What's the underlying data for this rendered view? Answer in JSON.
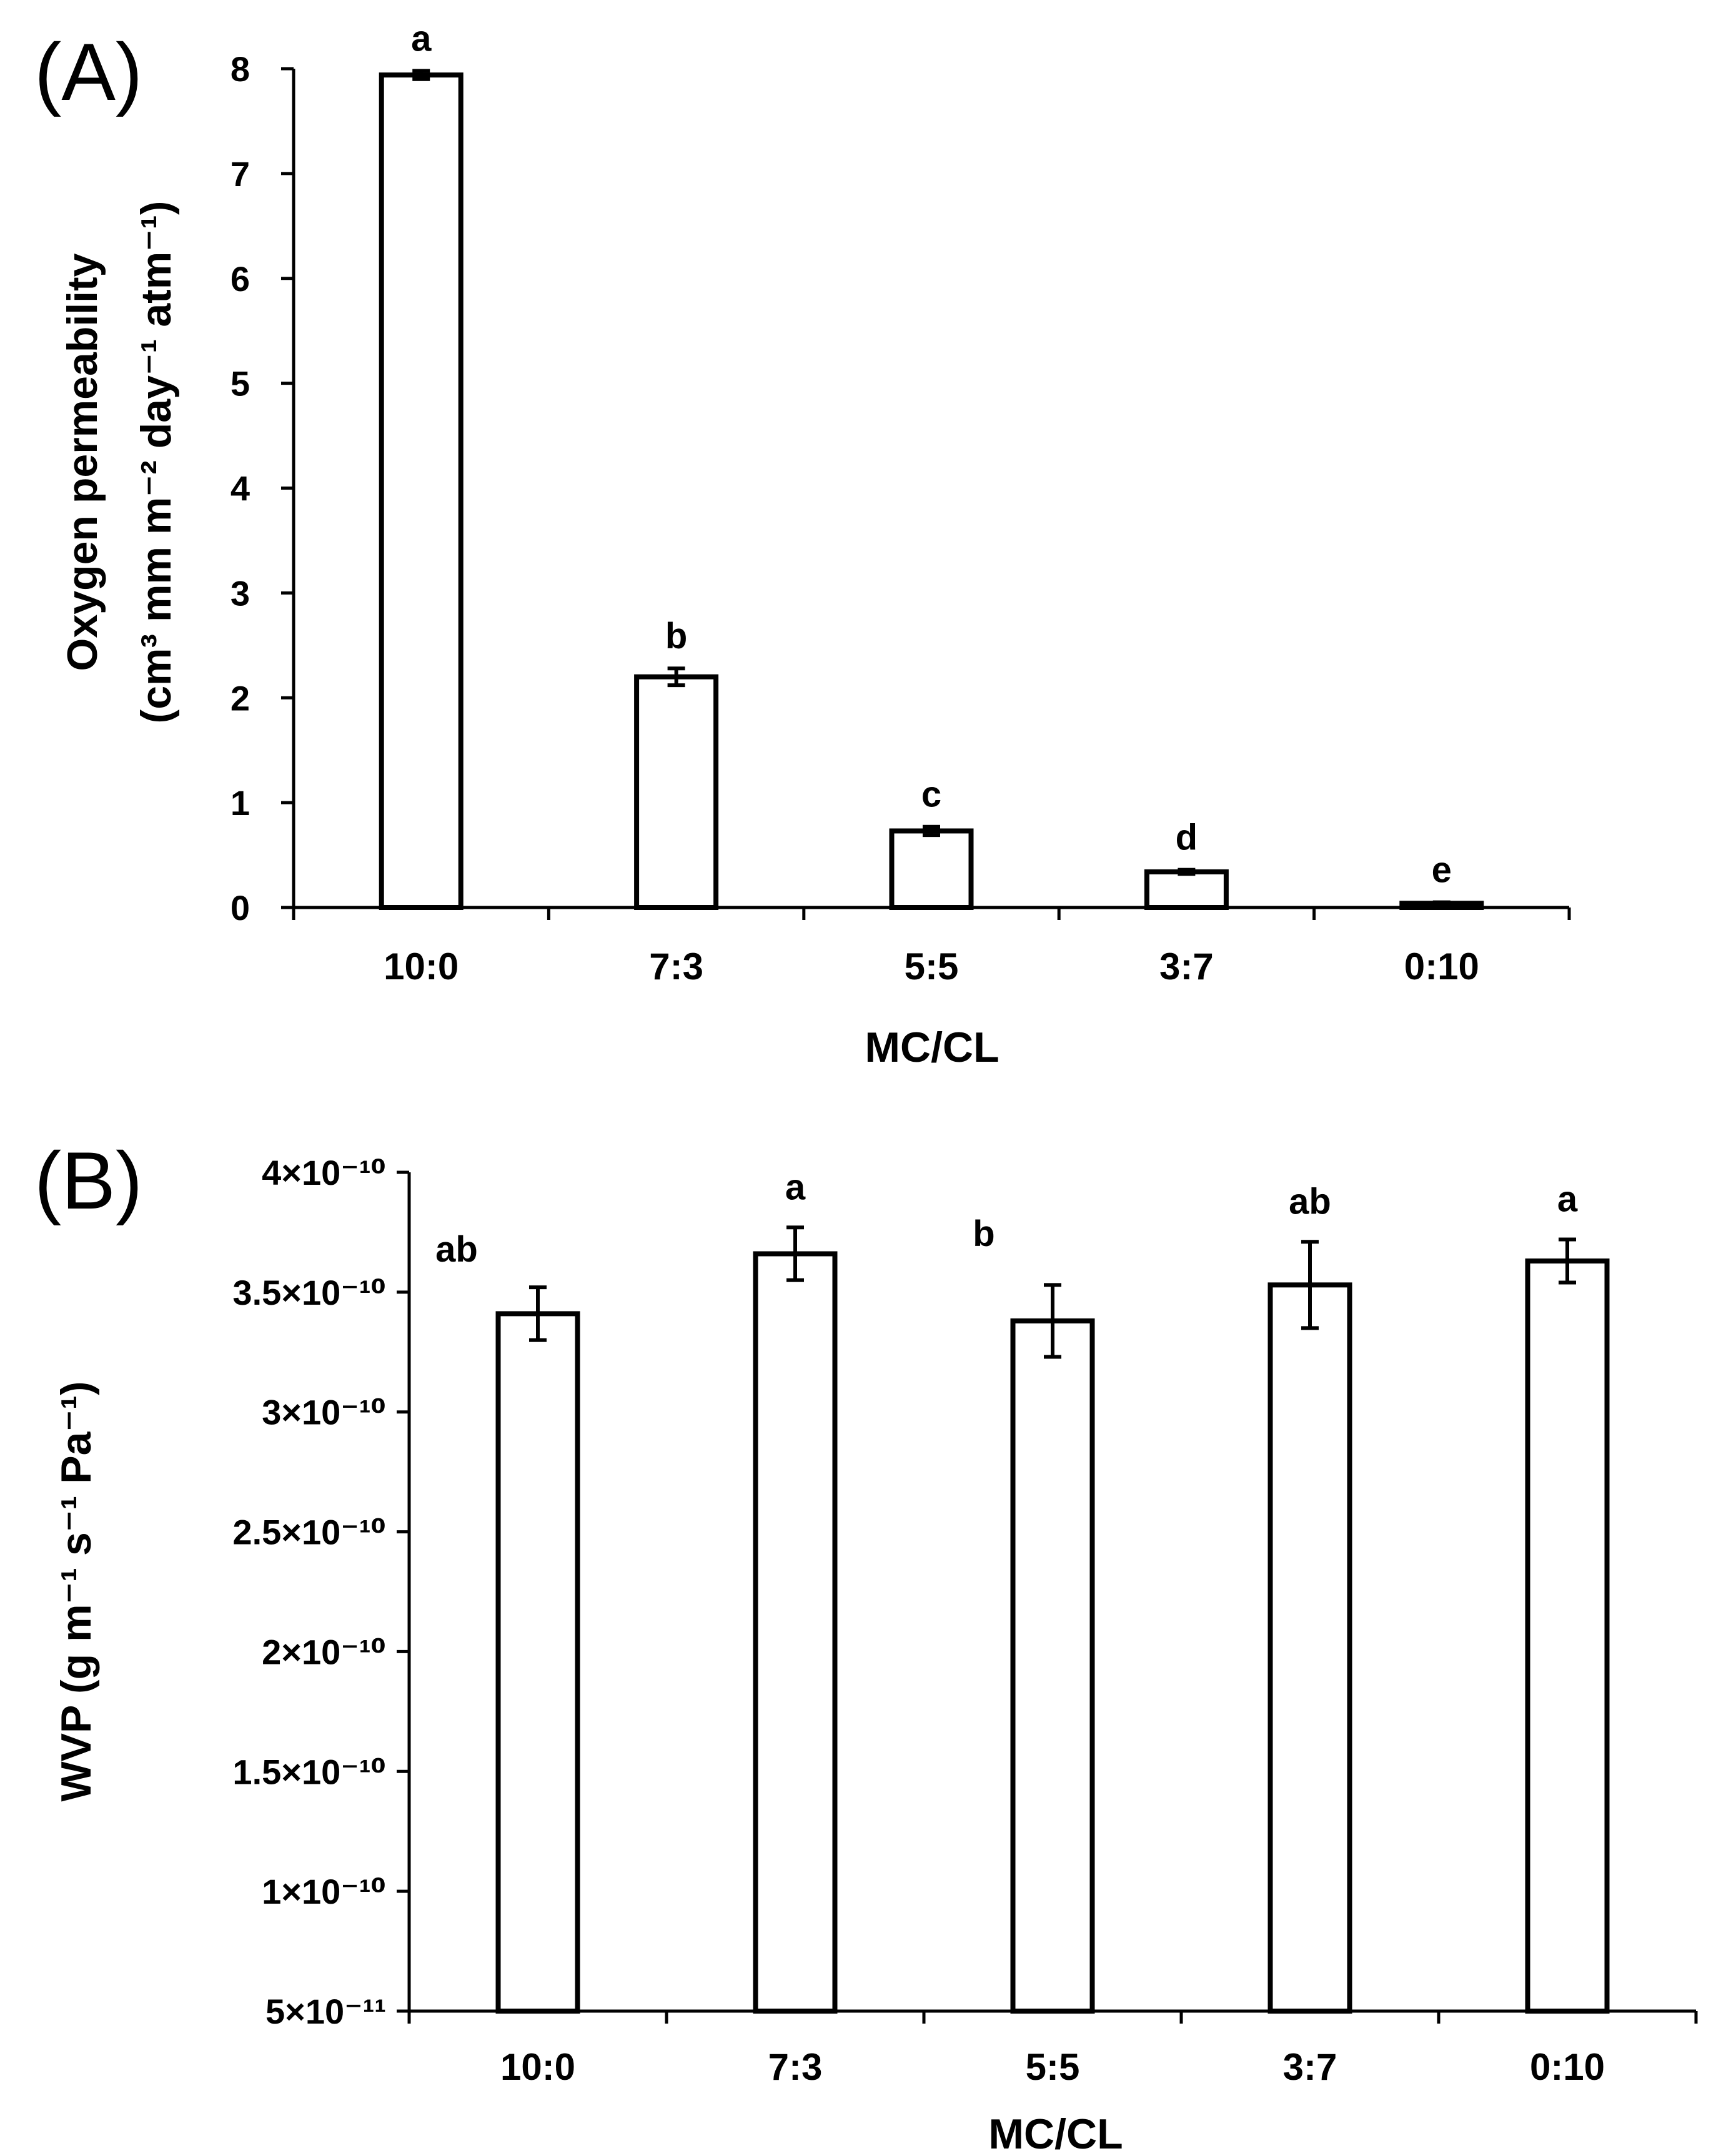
{
  "chart_data": [
    {
      "type": "bar",
      "panel_label": "(A)",
      "categories": [
        "10:0",
        "7:3",
        "5:5",
        "3:7",
        "0:10"
      ],
      "values": [
        7.94,
        2.2,
        0.73,
        0.34,
        0.04
      ],
      "errors": [
        0.04,
        0.08,
        0.04,
        0.02,
        0.01
      ],
      "significance": [
        "a",
        "b",
        "c",
        "d",
        "e"
      ],
      "xlabel": "MC/CL",
      "ylabel_lines": [
        "Oxygen permeability",
        "(cm³ mm m⁻² day⁻¹ atm⁻¹)"
      ],
      "ylim": [
        0,
        8
      ],
      "yticks": [
        {
          "value": 0,
          "label": "0"
        },
        {
          "value": 1,
          "label": "1"
        },
        {
          "value": 2,
          "label": "2"
        },
        {
          "value": 3,
          "label": "3"
        },
        {
          "value": 4,
          "label": "4"
        },
        {
          "value": 5,
          "label": "5"
        },
        {
          "value": 6,
          "label": "6"
        },
        {
          "value": 7,
          "label": "7"
        },
        {
          "value": 8,
          "label": "8"
        }
      ],
      "grid": false,
      "bar_fill": "#ffffff",
      "bar_stroke": "#000000"
    },
    {
      "type": "bar",
      "panel_label": "(B)",
      "categories": [
        "10:0",
        "7:3",
        "5:5",
        "3:7",
        "0:10"
      ],
      "values": [
        3.41e-10,
        3.66e-10,
        3.38e-10,
        3.53e-10,
        3.63e-10
      ],
      "errors": [
        1.1e-11,
        1.1e-11,
        1.5e-11,
        1.8e-11,
        9e-12
      ],
      "significance": [
        "ab",
        "a",
        "b",
        "ab",
        "a"
      ],
      "xlabel": "MC/CL",
      "ylabel_lines": [
        "WVP (g m⁻¹ s⁻¹ Pa⁻¹)"
      ],
      "ylim": [
        5e-11,
        4e-10
      ],
      "yticks": [
        {
          "value": 5e-11,
          "label": "5×10⁻¹¹"
        },
        {
          "value": 1e-10,
          "label": "1×10⁻¹⁰"
        },
        {
          "value": 1.5e-10,
          "label": "1.5×10⁻¹⁰"
        },
        {
          "value": 2e-10,
          "label": "2×10⁻¹⁰"
        },
        {
          "value": 2.5e-10,
          "label": "2.5×10⁻¹⁰"
        },
        {
          "value": 3e-10,
          "label": "3×10⁻¹⁰"
        },
        {
          "value": 3.5e-10,
          "label": "3.5×10⁻¹⁰"
        },
        {
          "value": 4e-10,
          "label": "4×10⁻¹⁰"
        }
      ],
      "grid": false,
      "bar_fill": "#ffffff",
      "bar_stroke": "#000000"
    }
  ]
}
